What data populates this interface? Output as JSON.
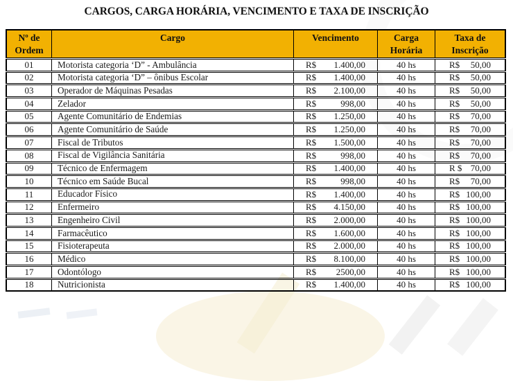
{
  "title": "CARGOS, CARGA HORÁRIA, VENCIMENTO E TAXA DE INSCRIÇÃO",
  "colors": {
    "header_bg": "#F2B102",
    "border": "#000000",
    "text": "#1A1A1A"
  },
  "table": {
    "headers": [
      "Nº de\nOrdem",
      "Cargo",
      "Vencimento",
      "Carga\nHorária",
      "Taxa de\nInscrição"
    ],
    "rows": [
      {
        "ordem": "01",
        "cargo": "Motorista categoria ‘D” - Ambulância",
        "venc_cur": "R$",
        "venc": "1.400,00",
        "carga": "40 hs",
        "taxa_cur": "R$",
        "taxa": "50,00"
      },
      {
        "ordem": "02",
        "cargo": "Motorista categoria ‘D” – ônibus Escolar",
        "venc_cur": "R$",
        "venc": "1.400,00",
        "carga": "40 hs",
        "taxa_cur": "R$",
        "taxa": "50,00"
      },
      {
        "ordem": "03",
        "cargo": "Operador de Máquinas Pesadas",
        "venc_cur": "R$",
        "venc": "2.100,00",
        "carga": "40 hs",
        "taxa_cur": "R$",
        "taxa": "50,00"
      },
      {
        "ordem": "04",
        "cargo": "Zelador",
        "venc_cur": "R$",
        "venc": "998,00",
        "carga": "40 hs",
        "taxa_cur": "R$",
        "taxa": "50,00"
      },
      {
        "ordem": "05",
        "cargo": "Agente Comunitário de Endemias",
        "venc_cur": "R$",
        "venc": "1.250,00",
        "carga": "40 hs",
        "taxa_cur": "R$",
        "taxa": "70,00"
      },
      {
        "ordem": "06",
        "cargo": "Agente Comunitário de Saúde",
        "venc_cur": "R$",
        "venc": "1.250,00",
        "carga": "40 hs",
        "taxa_cur": "R$",
        "taxa": "70,00"
      },
      {
        "ordem": "07",
        "cargo": "Fiscal de Tributos",
        "venc_cur": "R$",
        "venc": "1.500,00",
        "carga": "40 hs",
        "taxa_cur": "R$",
        "taxa": "70,00"
      },
      {
        "ordem": "08",
        "cargo": "Fiscal de Vigilância Sanitária",
        "venc_cur": "R$",
        "venc": "998,00",
        "carga": "40 hs",
        "taxa_cur": "R$",
        "taxa": "70,00"
      },
      {
        "ordem": "09",
        "cargo": "Técnico de Enfermagem",
        "venc_cur": "R$",
        "venc": "1.400,00",
        "carga": "40 hs",
        "taxa_cur": "R $",
        "taxa": "70,00"
      },
      {
        "ordem": "10",
        "cargo": "Técnico em Saúde Bucal",
        "venc_cur": "R$",
        "venc": "998,00",
        "carga": "40 hs",
        "taxa_cur": "R$",
        "taxa": "70,00"
      },
      {
        "ordem": "11",
        "cargo": "Educador Físico",
        "venc_cur": "R$",
        "venc": "1.400,00",
        "carga": "40 hs",
        "taxa_cur": "R$",
        "taxa": "100,00"
      },
      {
        "ordem": "12",
        "cargo": "Enfermeiro",
        "venc_cur": "R$",
        "venc": "4.150,00",
        "carga": "40 hs",
        "taxa_cur": "R$",
        "taxa": "100,00"
      },
      {
        "ordem": "13",
        "cargo": "Engenheiro Civil",
        "venc_cur": "R$",
        "venc": "2.000,00",
        "carga": "40 hs",
        "taxa_cur": "R$",
        "taxa": "100,00"
      },
      {
        "ordem": "14",
        "cargo": "Farmacêutico",
        "venc_cur": "R$",
        "venc": "1.600,00",
        "carga": "40 hs",
        "taxa_cur": "R$",
        "taxa": "100,00"
      },
      {
        "ordem": "15",
        "cargo": "Fisioterapeuta",
        "venc_cur": "R$",
        "venc": "2.000,00",
        "carga": "40 hs",
        "taxa_cur": "R$",
        "taxa": "100,00"
      },
      {
        "ordem": "16",
        "cargo": "Médico",
        "venc_cur": "R$",
        "venc": "8.100,00",
        "carga": "40 hs",
        "taxa_cur": "R$",
        "taxa": "100,00"
      },
      {
        "ordem": "17",
        "cargo": "Odontólogo",
        "venc_cur": "R$",
        "venc": "2500,00",
        "carga": "40 hs",
        "taxa_cur": "R$",
        "taxa": "100,00"
      },
      {
        "ordem": "18",
        "cargo": "Nutricionista",
        "venc_cur": "R$",
        "venc": "1.400,00",
        "carga": "40 hs",
        "taxa_cur": "R$",
        "taxa": "100,00"
      }
    ]
  }
}
